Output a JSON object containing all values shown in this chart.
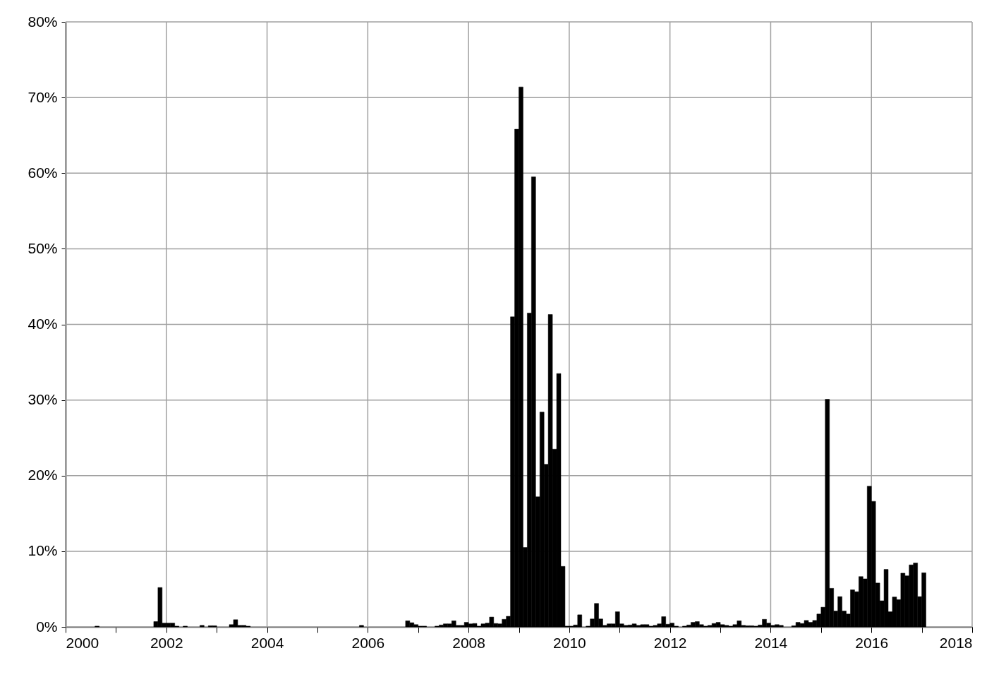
{
  "chart_data": {
    "type": "bar",
    "color": "#000000",
    "x": [
      "2000-08",
      "2001-10",
      "2001-11",
      "2001-12",
      "2002-01",
      "2002-02",
      "2002-03",
      "2002-05",
      "2002-09",
      "2002-11",
      "2002-12",
      "2003-04",
      "2003-05",
      "2003-06",
      "2003-07",
      "2003-08",
      "2005-11",
      "2006-10",
      "2006-11",
      "2006-12",
      "2007-01",
      "2007-02",
      "2007-05",
      "2007-06",
      "2007-07",
      "2007-08",
      "2007-09",
      "2007-10",
      "2007-11",
      "2007-12",
      "2008-01",
      "2008-02",
      "2008-03",
      "2008-04",
      "2008-05",
      "2008-06",
      "2008-07",
      "2008-08",
      "2008-09",
      "2008-10",
      "2008-11",
      "2008-12",
      "2009-01",
      "2009-02",
      "2009-03",
      "2009-04",
      "2009-05",
      "2009-06",
      "2009-07",
      "2009-08",
      "2009-09",
      "2009-10",
      "2009-11",
      "2009-12",
      "2010-01",
      "2010-02",
      "2010-03",
      "2010-05",
      "2010-06",
      "2010-07",
      "2010-08",
      "2010-09",
      "2010-10",
      "2010-11",
      "2010-12",
      "2011-01",
      "2011-02",
      "2011-03",
      "2011-04",
      "2011-05",
      "2011-06",
      "2011-07",
      "2011-08",
      "2011-09",
      "2011-10",
      "2011-11",
      "2011-12",
      "2012-01",
      "2012-02",
      "2012-04",
      "2012-05",
      "2012-06",
      "2012-07",
      "2012-08",
      "2012-09",
      "2012-10",
      "2012-11",
      "2012-12",
      "2013-01",
      "2013-02",
      "2013-03",
      "2013-04",
      "2013-05",
      "2013-06",
      "2013-07",
      "2013-08",
      "2013-09",
      "2013-10",
      "2013-11",
      "2013-12",
      "2014-01",
      "2014-02",
      "2014-03",
      "2014-06",
      "2014-07",
      "2014-08",
      "2014-09",
      "2014-10",
      "2014-11",
      "2014-12",
      "2015-01",
      "2015-02",
      "2015-03",
      "2015-04",
      "2015-05",
      "2015-06",
      "2015-07",
      "2015-08",
      "2015-09",
      "2015-10",
      "2015-11",
      "2015-12",
      "2016-01",
      "2016-02",
      "2016-03",
      "2016-04",
      "2016-05",
      "2016-06",
      "2016-07",
      "2016-08",
      "2016-09",
      "2016-10",
      "2016-11",
      "2016-12",
      "2017-01"
    ],
    "values": [
      0.1,
      0.7,
      5.2,
      0.5,
      0.5,
      0.5,
      0.1,
      0.1,
      0.2,
      0.15,
      0.15,
      0.3,
      0.95,
      0.2,
      0.2,
      0.1,
      0.2,
      0.8,
      0.55,
      0.3,
      0.1,
      0.1,
      0.1,
      0.25,
      0.4,
      0.4,
      0.8,
      0.2,
      0.2,
      0.6,
      0.4,
      0.45,
      0.1,
      0.4,
      0.5,
      1.3,
      0.45,
      0.4,
      1.0,
      1.4,
      41,
      65.8,
      71.4,
      10.5,
      41.5,
      59.5,
      17.2,
      28.4,
      21.5,
      41.3,
      23.5,
      33.5,
      8.0,
      0.1,
      0.1,
      0.25,
      1.6,
      0.1,
      1.05,
      3.1,
      1.05,
      0.2,
      0.4,
      0.4,
      2.0,
      0.4,
      0.2,
      0.25,
      0.4,
      0.2,
      0.3,
      0.3,
      0.1,
      0.2,
      0.4,
      1.35,
      0.35,
      0.5,
      0.1,
      0.1,
      0.25,
      0.6,
      0.7,
      0.3,
      0.1,
      0.2,
      0.45,
      0.6,
      0.3,
      0.2,
      0.1,
      0.3,
      0.8,
      0.2,
      0.15,
      0.15,
      0.1,
      0.25,
      1.0,
      0.5,
      0.2,
      0.3,
      0.2,
      0.15,
      0.6,
      0.45,
      0.85,
      0.6,
      0.85,
      1.7,
      2.6,
      30.1,
      5.1,
      2.1,
      4.0,
      2.1,
      1.7,
      4.9,
      4.65,
      6.65,
      6.35,
      18.6,
      16.6,
      5.8,
      3.45,
      7.6,
      2.0,
      3.95,
      3.6,
      7.1,
      6.75,
      8.2,
      8.45,
      4.0,
      7.15
    ],
    "xlim": [
      "2000-01",
      "2018-01"
    ],
    "xticks": [
      "2000",
      {
        "value": "2001",
        "label": null
      },
      "2002",
      {
        "value": "2003",
        "label": null
      },
      "2004",
      {
        "value": "2005",
        "label": null
      },
      "2006",
      {
        "value": "2007",
        "label": null
      },
      "2008",
      {
        "value": "2009",
        "label": null
      },
      "2010",
      {
        "value": "2011",
        "label": null
      },
      "2012",
      {
        "value": "2013",
        "label": null
      },
      "2014",
      {
        "value": "2015",
        "label": null
      },
      "2016",
      {
        "value": "2017",
        "label": null
      },
      "2018"
    ],
    "ylim": [
      0,
      80
    ],
    "yticks": [
      {
        "value": 0,
        "label": "0%"
      },
      {
        "value": 10,
        "label": "10%"
      },
      {
        "value": 20,
        "label": "20%"
      },
      {
        "value": 30,
        "label": "30%"
      },
      {
        "value": 40,
        "label": "40%"
      },
      {
        "value": 50,
        "label": "50%"
      },
      {
        "value": 60,
        "label": "60%"
      },
      {
        "value": 70,
        "label": "70%"
      },
      {
        "value": 80,
        "label": "80%"
      }
    ],
    "grid": true
  }
}
